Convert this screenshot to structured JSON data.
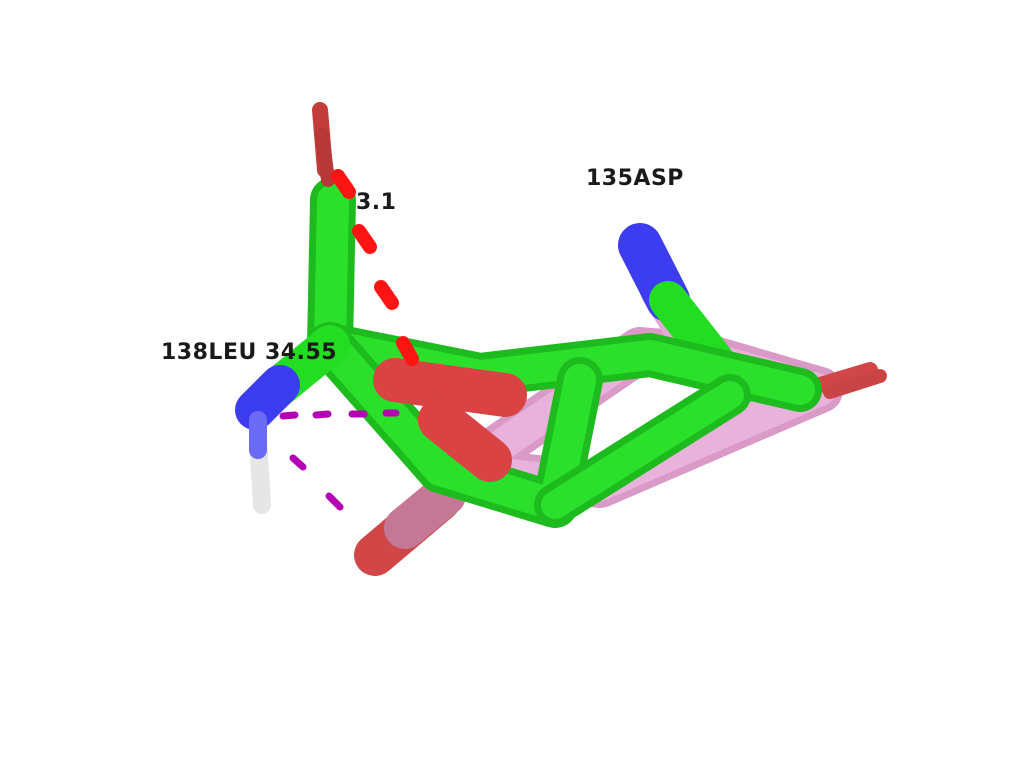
{
  "labels": {
    "residue_asp": "135ASP",
    "distance": "3.1",
    "residue_leu": "138LEU 34.55"
  },
  "colors": {
    "background": "#ffffff",
    "carbon_ligand": "#22dd22",
    "carbon_protein": "#e6a6d6",
    "oxygen": "#e03c3c",
    "nitrogen": "#3c3cf0",
    "hydrogen": "#f0f0f0",
    "hbond_dash": "#ff1414",
    "pi_dash": "#b400b4"
  }
}
